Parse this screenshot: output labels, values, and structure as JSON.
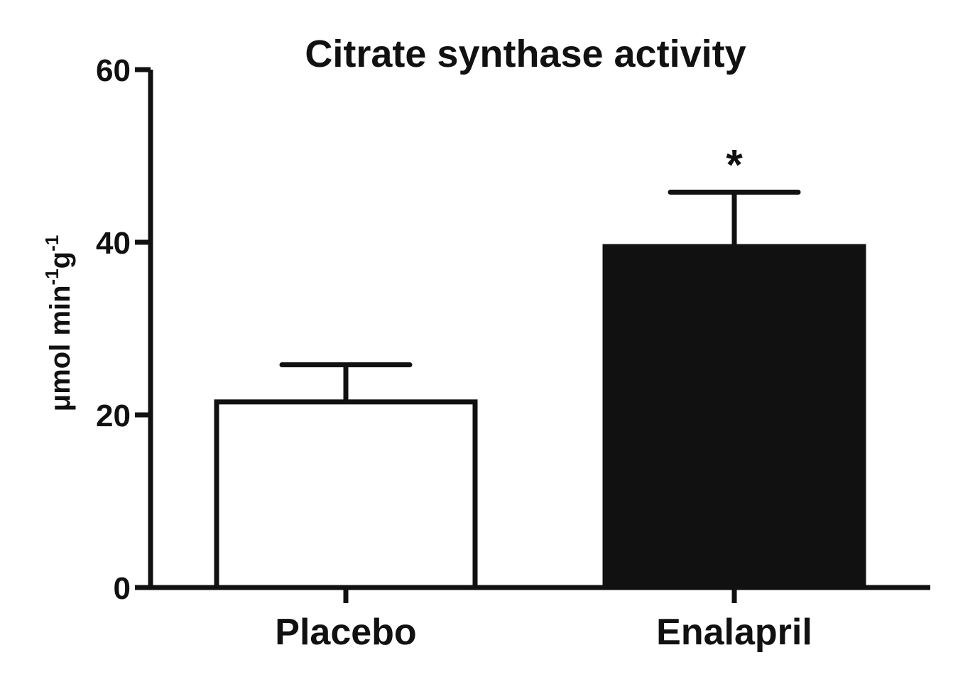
{
  "chart_data": {
    "type": "bar",
    "title": "Citrate synthase activity",
    "ylabel": {
      "base": "μmol min",
      "sup1": "-1",
      "mid": "g",
      "sup2": "-1"
    },
    "xlabel": "",
    "ylim": [
      0,
      60
    ],
    "yticks": [
      0,
      20,
      40,
      60
    ],
    "ytick_labels": [
      "0",
      "20",
      "40",
      "60"
    ],
    "categories": [
      "Placebo",
      "Enalapril"
    ],
    "values": [
      21.5,
      39.5
    ],
    "errors": [
      4.3,
      6.3
    ],
    "colors": [
      "#ffffff",
      "#111111"
    ],
    "annotations": [
      "",
      "*"
    ],
    "grid": false,
    "legend": "none"
  }
}
